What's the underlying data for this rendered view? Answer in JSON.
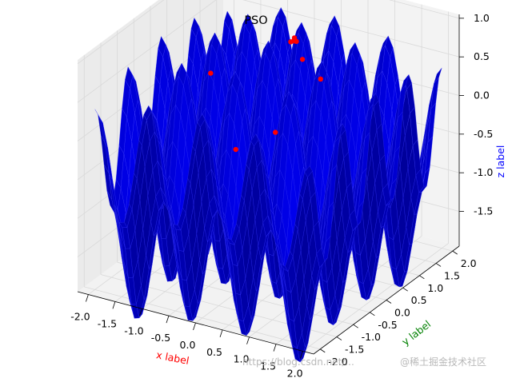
{
  "chart_data": {
    "type": "surface3d",
    "title": "PSO",
    "xlabel": "x label",
    "ylabel": "y label",
    "zlabel": "z label",
    "colors": {
      "xlabel": "#ff0000",
      "ylabel": "#008000",
      "zlabel": "#0000ff",
      "surface": "#0000ff",
      "particles": "#ff0000",
      "pane": "#f2f2f2",
      "grid": "#d9d9d9"
    },
    "xlim": [
      -2.2,
      2.2
    ],
    "ylim": [
      -2.2,
      2.2
    ],
    "zlim": [
      -1.95,
      1.05
    ],
    "xticks": [
      "-2.0",
      "-1.5",
      "-1.0",
      "-0.5",
      "0.0",
      "0.5",
      "1.0",
      "1.5",
      "2.0"
    ],
    "yticks": [
      "-2.0",
      "-1.5",
      "-1.0",
      "-0.5",
      "0.0",
      "0.5",
      "1.0",
      "1.5",
      "2.0"
    ],
    "zticks": [
      "-1.5",
      "-1.0",
      "-0.5",
      "0.0",
      "0.5",
      "1.0"
    ],
    "grid": true,
    "particles": [
      {
        "x": 0.3,
        "y": 0.3,
        "z": 1.0
      },
      {
        "x": 0.32,
        "y": 0.25,
        "z": 0.98
      },
      {
        "x": 0.28,
        "y": 0.33,
        "z": 0.96
      },
      {
        "x": 0.35,
        "y": 0.28,
        "z": 0.97
      },
      {
        "x": 0.25,
        "y": 0.27,
        "z": 0.95
      },
      {
        "x": 0.45,
        "y": 0.3,
        "z": 0.75
      },
      {
        "x": -1.2,
        "y": 0.2,
        "z": 0.3
      },
      {
        "x": 0.85,
        "y": 0.2,
        "z": 0.6
      },
      {
        "x": 0.5,
        "y": -0.6,
        "z": 0.1
      },
      {
        "x": -0.3,
        "y": -0.5,
        "z": -0.3
      }
    ]
  },
  "watermark": {
    "url": "https://blog.csdn.net/...",
    "credit": "@稀土掘金技术社区"
  }
}
